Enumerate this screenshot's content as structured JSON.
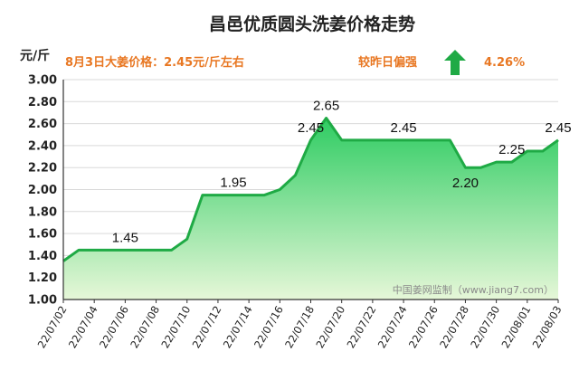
{
  "chart_data": {
    "type": "area",
    "title": "昌邑优质圆头洗姜价格走势",
    "ylabel": "元/斤",
    "ylim": [
      1.0,
      3.0
    ],
    "yticks": [
      "1.00",
      "1.20",
      "1.40",
      "1.60",
      "1.80",
      "2.00",
      "2.20",
      "2.40",
      "2.60",
      "2.80",
      "3.00"
    ],
    "xtick_labels": [
      "22/07/02",
      "22/07/04",
      "22/07/06",
      "22/07/08",
      "22/07/10",
      "22/07/12",
      "22/07/14",
      "22/07/16",
      "22/07/18",
      "22/07/20",
      "22/07/22",
      "22/07/24",
      "22/07/26",
      "22/07/28",
      "22/07/30",
      "22/08/01",
      "22/08/03"
    ],
    "x": [
      "07/02",
      "07/03",
      "07/04",
      "07/05",
      "07/06",
      "07/07",
      "07/08",
      "07/09",
      "07/10",
      "07/11",
      "07/12",
      "07/13",
      "07/14",
      "07/15",
      "07/16",
      "07/17",
      "07/18",
      "07/19",
      "07/20",
      "07/21",
      "07/22",
      "07/23",
      "07/24",
      "07/25",
      "07/26",
      "07/27",
      "07/28",
      "07/29",
      "07/30",
      "07/31",
      "08/01",
      "08/02",
      "08/03"
    ],
    "values": [
      1.35,
      1.45,
      1.45,
      1.45,
      1.45,
      1.45,
      1.45,
      1.45,
      1.55,
      1.95,
      1.95,
      1.95,
      1.95,
      1.95,
      2.0,
      2.13,
      2.45,
      2.65,
      2.45,
      2.45,
      2.45,
      2.45,
      2.45,
      2.45,
      2.45,
      2.45,
      2.2,
      2.2,
      2.25,
      2.25,
      2.35,
      2.35,
      2.45
    ],
    "data_labels": [
      {
        "index": 4,
        "text": "1.45"
      },
      {
        "index": 11,
        "text": "1.95"
      },
      {
        "index": 16,
        "text": "2.45"
      },
      {
        "index": 17,
        "text": "2.65"
      },
      {
        "index": 22,
        "text": "2.45"
      },
      {
        "index": 26,
        "text": "2.20"
      },
      {
        "index": 29,
        "text": "2.25"
      },
      {
        "index": 32,
        "text": "2.45"
      }
    ],
    "line_color": "#1faa45",
    "fill_top_color": "#2ecc62",
    "fill_bottom_color": "#e6f7d8",
    "grid": true
  },
  "header": {
    "note_price": "8月3日大姜价格：2.45元/斤左右",
    "note_compare": "较昨日偏强",
    "note_change": "4.26%",
    "arrow_color": "#1faa45",
    "note_color": "#e87722"
  },
  "watermark": "中国姜网监制（www.jiang7.com）"
}
